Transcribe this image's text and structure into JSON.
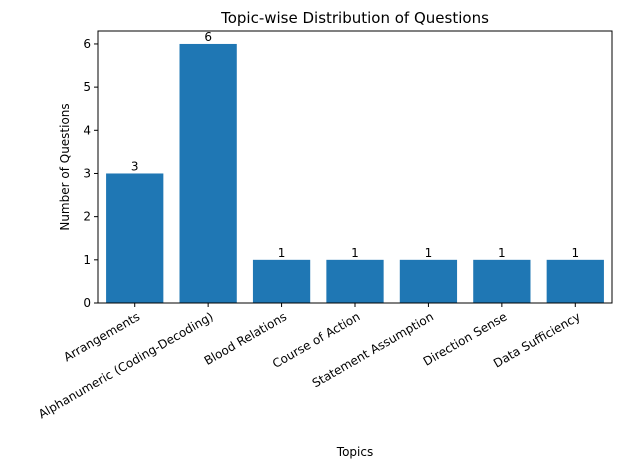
{
  "chart_data": {
    "type": "bar",
    "title": "Topic-wise Distribution of Questions",
    "xlabel": "Topics",
    "ylabel": "Number of Questions",
    "categories": [
      "Arrangements",
      "Alphanumeric (Coding-Decoding)",
      "Blood Relations",
      "Course of Action",
      "Statement Assumption",
      "Direction Sense",
      "Data Sufficiency"
    ],
    "values": [
      3,
      6,
      1,
      1,
      1,
      1,
      1
    ],
    "data_labels": [
      "3",
      "6",
      "1",
      "1",
      "1",
      "1",
      "1"
    ],
    "yticks": [
      0,
      1,
      2,
      3,
      4,
      5,
      6
    ],
    "ylim": [
      0,
      6.3
    ],
    "grid": false,
    "legend": "none",
    "bar_color": "#1f77b4"
  }
}
